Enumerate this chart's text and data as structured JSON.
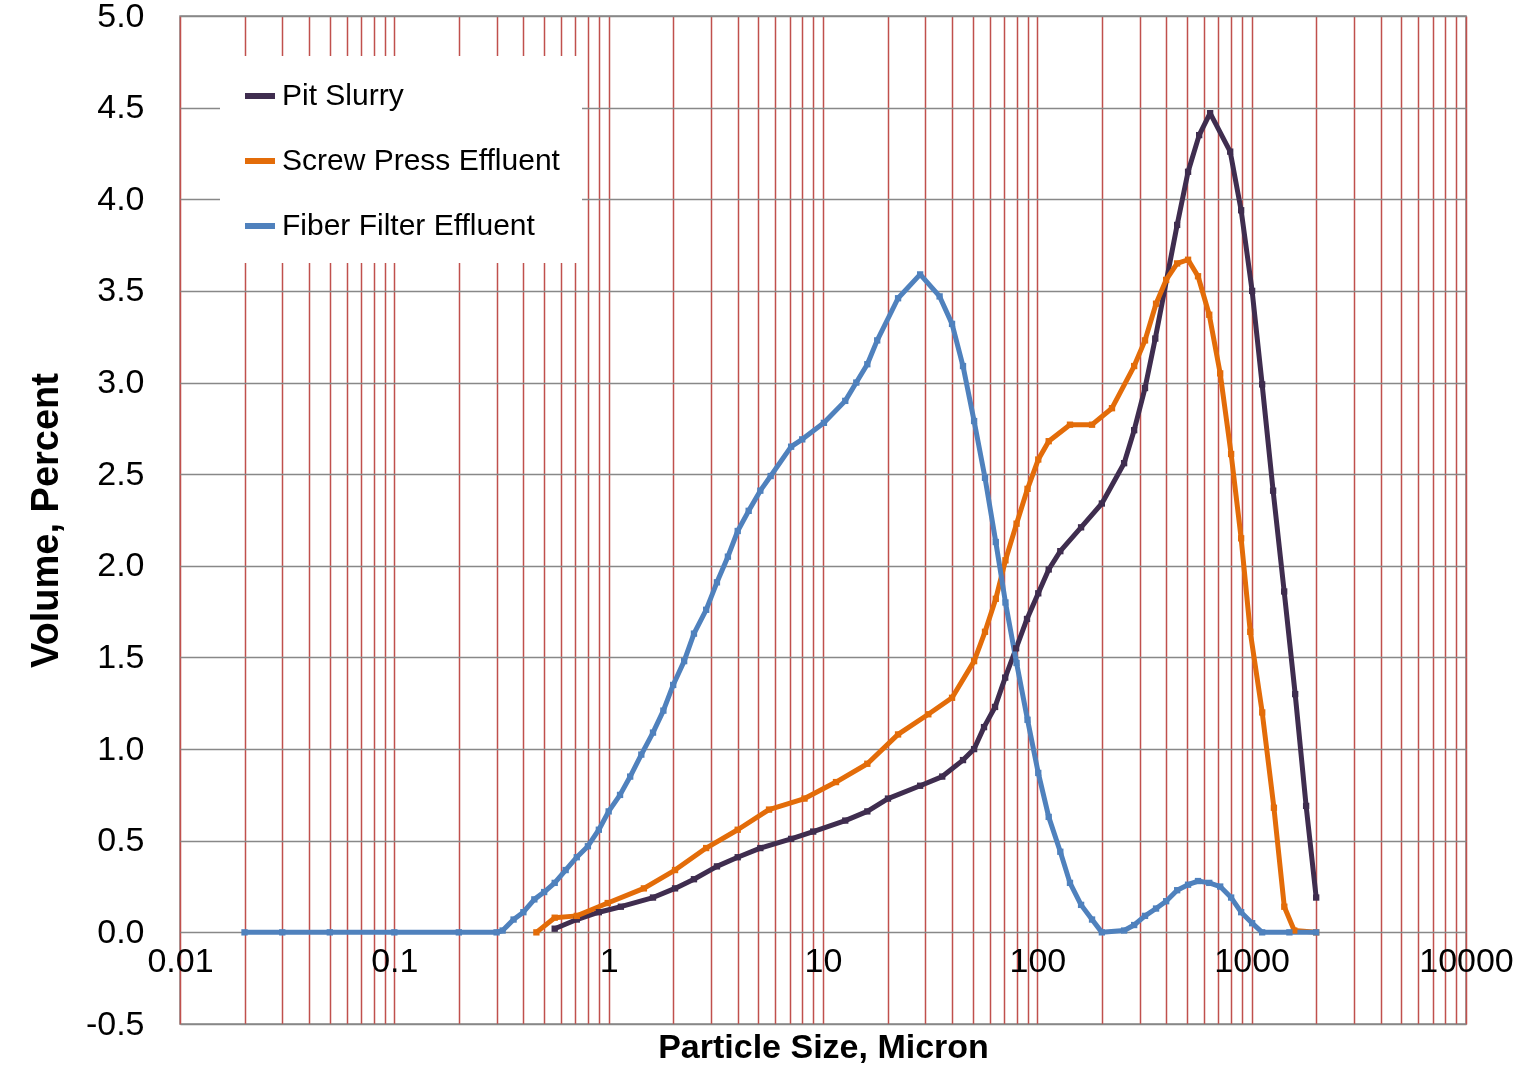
{
  "chart_data": {
    "type": "line",
    "xlabel": "Particle Size, Micron",
    "ylabel": "Volume, Percent",
    "log": "x",
    "grid": true,
    "legend": "top left",
    "marker": "square",
    "line_style": "solid",
    "xlim": [
      0.01,
      10000
    ],
    "ylim": [
      -0.5,
      5.0
    ],
    "xticks": [
      0.01,
      {
        "value": 0.02,
        "label": null
      },
      {
        "value": 0.03,
        "label": null
      },
      {
        "value": 0.04,
        "label": null
      },
      {
        "value": 0.05,
        "label": null
      },
      {
        "value": 0.06,
        "label": null
      },
      {
        "value": 0.07,
        "label": null
      },
      {
        "value": 0.08,
        "label": null
      },
      {
        "value": 0.09,
        "label": null
      },
      0.1,
      {
        "value": 0.2,
        "label": null
      },
      {
        "value": 0.3,
        "label": null
      },
      {
        "value": 0.4,
        "label": null
      },
      {
        "value": 0.5,
        "label": null
      },
      {
        "value": 0.6,
        "label": null
      },
      {
        "value": 0.7,
        "label": null
      },
      {
        "value": 0.8,
        "label": null
      },
      {
        "value": 0.9,
        "label": null
      },
      1,
      {
        "value": 2,
        "label": null
      },
      {
        "value": 3,
        "label": null
      },
      {
        "value": 4,
        "label": null
      },
      {
        "value": 5,
        "label": null
      },
      {
        "value": 6,
        "label": null
      },
      {
        "value": 7,
        "label": null
      },
      {
        "value": 8,
        "label": null
      },
      {
        "value": 9,
        "label": null
      },
      10,
      {
        "value": 20,
        "label": null
      },
      {
        "value": 30,
        "label": null
      },
      {
        "value": 40,
        "label": null
      },
      {
        "value": 50,
        "label": null
      },
      {
        "value": 60,
        "label": null
      },
      {
        "value": 70,
        "label": null
      },
      {
        "value": 80,
        "label": null
      },
      {
        "value": 90,
        "label": null
      },
      100,
      {
        "value": 200,
        "label": null
      },
      {
        "value": 300,
        "label": null
      },
      {
        "value": 400,
        "label": null
      },
      {
        "value": 500,
        "label": null
      },
      {
        "value": 600,
        "label": null
      },
      {
        "value": 700,
        "label": null
      },
      {
        "value": 800,
        "label": null
      },
      {
        "value": 900,
        "label": null
      },
      1000,
      {
        "value": 2000,
        "label": null
      },
      {
        "value": 3000,
        "label": null
      },
      {
        "value": 4000,
        "label": null
      },
      {
        "value": 5000,
        "label": null
      },
      {
        "value": 6000,
        "label": null
      },
      {
        "value": 7000,
        "label": null
      },
      {
        "value": 8000,
        "label": null
      },
      {
        "value": 9000,
        "label": null
      },
      10000
    ],
    "yticks": [
      -0.5,
      {
        "value": 0,
        "label": "0.0"
      },
      0.5,
      {
        "value": 1,
        "label": "1.0"
      },
      1.5,
      {
        "value": 2,
        "label": "2.0"
      },
      2.5,
      {
        "value": 3,
        "label": "3.0"
      },
      3.5,
      {
        "value": 4,
        "label": "4.0"
      },
      4.5,
      {
        "value": 5,
        "label": "5.0"
      }
    ],
    "series": [
      {
        "name": "Pit Slurry",
        "color": "#3f2d4f",
        "x": [
          0.56,
          0.71,
          0.9,
          1.14,
          1.61,
          2.04,
          2.5,
          3.2,
          4.0,
          5.1,
          7.1,
          9.0,
          12.7,
          16.1,
          20.1,
          28.4,
          36,
          45,
          50.7,
          56.4,
          63.5,
          70.8,
          79.6,
          89.5,
          101,
          113,
          128,
          160,
          200,
          254,
          283,
          318,
          355,
          449,
          505,
          569,
          640,
          794,
          893,
          1005,
          1119,
          1259,
          1418,
          1596,
          1795,
          2000
        ],
        "values": [
          0.02,
          0.07,
          0.11,
          0.14,
          0.19,
          0.24,
          0.29,
          0.36,
          0.41,
          0.46,
          0.51,
          0.55,
          0.61,
          0.66,
          0.73,
          0.8,
          0.85,
          0.94,
          1.0,
          1.12,
          1.23,
          1.39,
          1.55,
          1.71,
          1.85,
          1.98,
          2.08,
          2.21,
          2.34,
          2.56,
          2.74,
          2.97,
          3.24,
          3.86,
          4.15,
          4.35,
          4.47,
          4.26,
          3.94,
          3.5,
          2.99,
          2.41,
          1.86,
          1.3,
          0.69,
          0.19
        ]
      },
      {
        "name": "Screw Press Effluent",
        "color": "#e36c09",
        "x": [
          0.46,
          0.56,
          0.71,
          0.99,
          1.46,
          2.04,
          2.85,
          4.0,
          5.6,
          8.2,
          11.5,
          16.1,
          22.4,
          31,
          40,
          50.7,
          57,
          64,
          71,
          80,
          90,
          101,
          113,
          142,
          180,
          223,
          283,
          318,
          358,
          399,
          449,
          505,
          562,
          634,
          713,
          802,
          893,
          985,
          1120,
          1270,
          1420,
          1580,
          2000
        ],
        "values": [
          0,
          0.08,
          0.09,
          0.16,
          0.24,
          0.34,
          0.46,
          0.56,
          0.67,
          0.73,
          0.82,
          0.92,
          1.08,
          1.19,
          1.28,
          1.48,
          1.64,
          1.82,
          2.03,
          2.23,
          2.42,
          2.58,
          2.68,
          2.77,
          2.77,
          2.86,
          3.09,
          3.23,
          3.43,
          3.56,
          3.65,
          3.67,
          3.58,
          3.37,
          3.05,
          2.61,
          2.15,
          1.64,
          1.2,
          0.68,
          0.14,
          0.01,
          0
        ]
      },
      {
        "name": "Fiber Filter Effluent",
        "color": "#4f81bd",
        "x": [
          0.02,
          0.03,
          0.05,
          0.1,
          0.2,
          0.3,
          0.32,
          0.36,
          0.4,
          0.45,
          0.5,
          0.56,
          0.63,
          0.71,
          0.8,
          0.9,
          1.0,
          1.13,
          1.26,
          1.42,
          1.61,
          1.8,
          2.0,
          2.25,
          2.5,
          2.85,
          3.2,
          3.6,
          4.0,
          4.5,
          5.1,
          5.7,
          7.1,
          8.0,
          10.1,
          12.7,
          14.3,
          16.1,
          17.9,
          22.4,
          28.4,
          35,
          40,
          45,
          50.7,
          57,
          64,
          71,
          80,
          90,
          101,
          113,
          128,
          142,
          160,
          180,
          200,
          254,
          283,
          318,
          358,
          399,
          449,
          505,
          562,
          634,
          713,
          802,
          893,
          1005,
          1119,
          1500,
          2000
        ],
        "values": [
          0,
          0,
          0,
          0,
          0,
          0,
          0.01,
          0.07,
          0.11,
          0.18,
          0.22,
          0.27,
          0.34,
          0.41,
          0.47,
          0.56,
          0.66,
          0.75,
          0.85,
          0.97,
          1.09,
          1.21,
          1.35,
          1.48,
          1.63,
          1.76,
          1.91,
          2.05,
          2.19,
          2.3,
          2.41,
          2.49,
          2.65,
          2.69,
          2.78,
          2.9,
          3.0,
          3.1,
          3.23,
          3.46,
          3.59,
          3.47,
          3.32,
          3.09,
          2.79,
          2.48,
          2.13,
          1.8,
          1.47,
          1.16,
          0.87,
          0.63,
          0.44,
          0.27,
          0.15,
          0.07,
          0,
          0.01,
          0.04,
          0.09,
          0.13,
          0.17,
          0.23,
          0.26,
          0.28,
          0.27,
          0.25,
          0.19,
          0.11,
          0.05,
          0,
          0,
          0
        ]
      }
    ]
  }
}
